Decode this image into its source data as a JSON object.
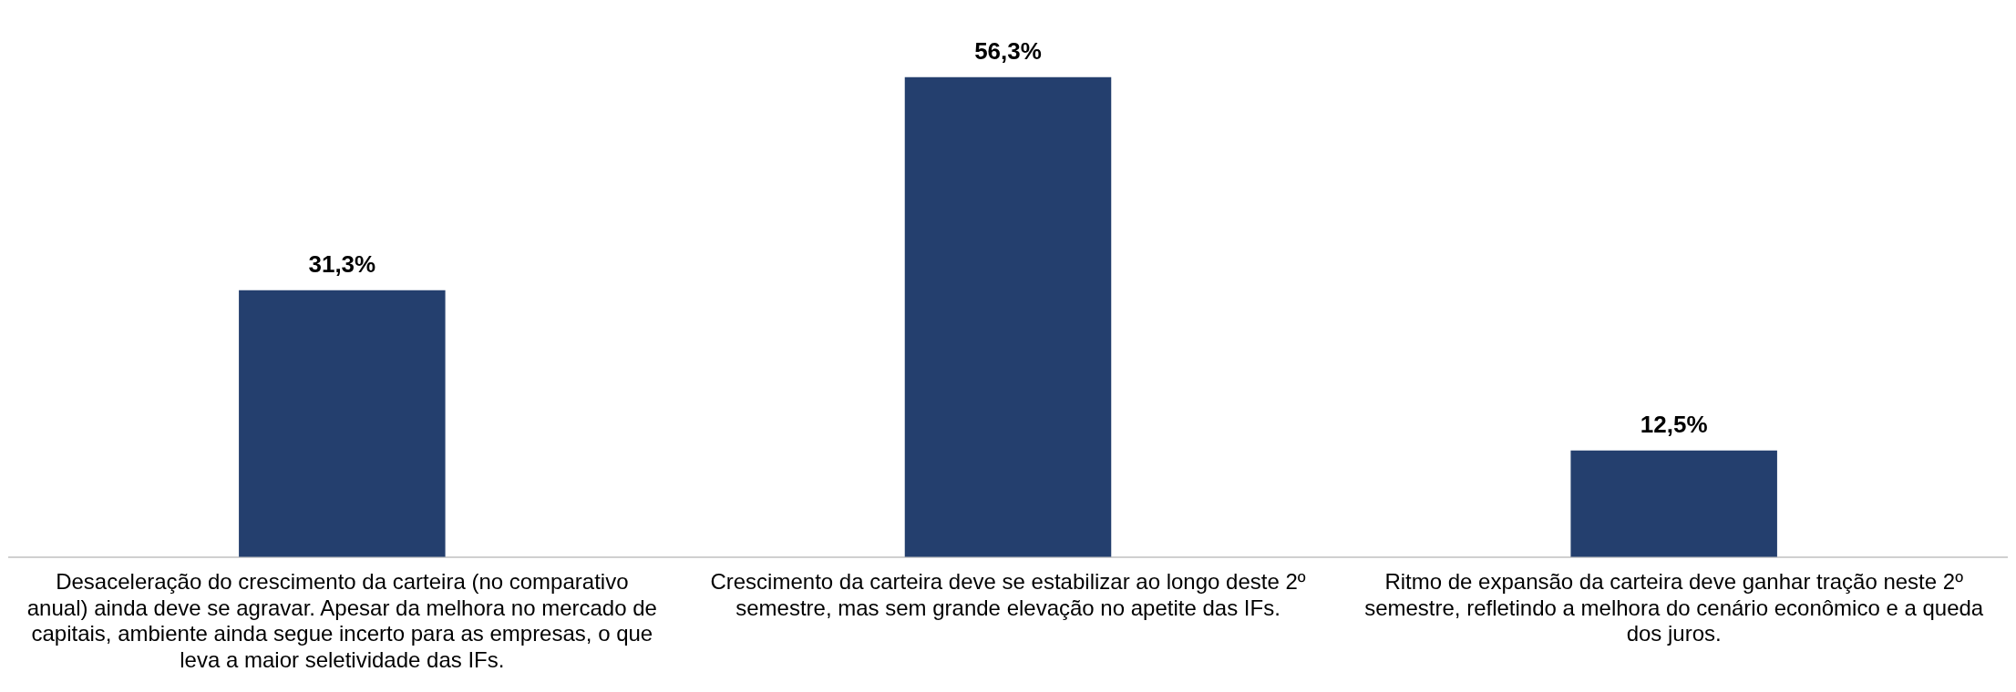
{
  "chart_data": {
    "type": "bar",
    "categories": [
      "Desaceleração do crescimento da carteira (no comparativo anual) ainda deve se agravar. Apesar da melhora no mercado de capitais, ambiente ainda segue incerto para as empresas, o que leva a maior seletividade das IFs.",
      "Crescimento da carteira deve se estabilizar ao longo deste 2º semestre, mas sem grande elevação no apetite das IFs.",
      "Ritmo de expansão da carteira deve ganhar tração neste 2º semestre, refletindo a melhora do cenário econômico e a queda dos juros."
    ],
    "values": [
      31.3,
      56.3,
      12.5
    ],
    "value_labels": [
      "31,3%",
      "56,3%",
      "12,5%"
    ],
    "color": "#243f6e",
    "grid": false,
    "legend": false
  }
}
